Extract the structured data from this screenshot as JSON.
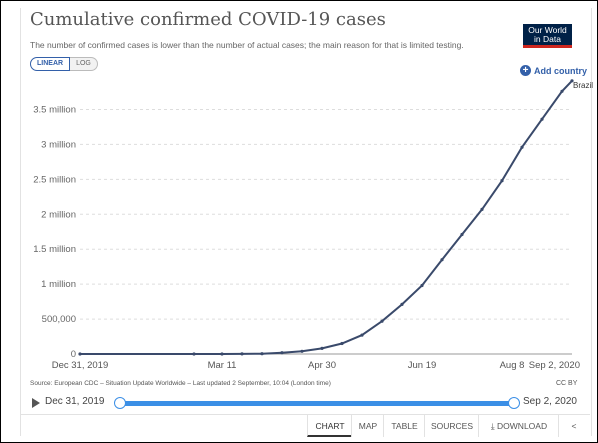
{
  "header": {
    "title": "Cumulative confirmed COVID-19 cases",
    "subtitle": "The number of confirmed cases is lower than the number of actual cases; the main reason for that is limited testing.",
    "logo_line1": "Our World",
    "logo_line2": "in Data"
  },
  "controls": {
    "linear_label": "LINEAR",
    "log_label": "LOG",
    "add_country_label": "Add country"
  },
  "footer": {
    "source": "Source: European CDC – Situation Update Worldwide – Last updated 2 September, 10:04 (London time)",
    "license": "CC BY"
  },
  "timeline": {
    "start_label": "Dec 31, 2019",
    "end_label": "Sep 2, 2020"
  },
  "tabs": [
    "CHART",
    "MAP",
    "TABLE",
    "SOURCES",
    "DOWNLOAD"
  ],
  "colors": {
    "series": "#3a4a6b",
    "accent": "#3360a9",
    "slider": "#3b8fe6"
  },
  "chart_data": {
    "type": "line",
    "title": "Cumulative confirmed COVID-19 cases",
    "ylim": [
      0,
      3950000
    ],
    "xlim": [
      "2019-12-31",
      "2020-09-02"
    ],
    "y_ticks": [
      {
        "value": 0,
        "label": "0"
      },
      {
        "value": 500000,
        "label": "500,000"
      },
      {
        "value": 1000000,
        "label": "1 million"
      },
      {
        "value": 1500000,
        "label": "1.5 million"
      },
      {
        "value": 2000000,
        "label": "2 million"
      },
      {
        "value": 2500000,
        "label": "2.5 million"
      },
      {
        "value": 3000000,
        "label": "3 million"
      },
      {
        "value": 3500000,
        "label": "3.5 million"
      }
    ],
    "x_ticks": [
      {
        "date": "2019-12-31",
        "label": "Dec 31, 2019"
      },
      {
        "date": "2020-03-11",
        "label": "Mar 11"
      },
      {
        "date": "2020-04-30",
        "label": "Apr 30"
      },
      {
        "date": "2020-06-19",
        "label": "Jun 19"
      },
      {
        "date": "2020-08-08",
        "label": "Aug 8"
      },
      {
        "date": "2020-09-02",
        "label": "Sep 2, 2020"
      }
    ],
    "grid": true,
    "series": [
      {
        "name": "Brazil",
        "points": [
          [
            "2019-12-31",
            0
          ],
          [
            "2020-02-26",
            0
          ],
          [
            "2020-03-11",
            50
          ],
          [
            "2020-03-21",
            900
          ],
          [
            "2020-03-31",
            4600
          ],
          [
            "2020-04-10",
            18000
          ],
          [
            "2020-04-20",
            38000
          ],
          [
            "2020-04-30",
            80000
          ],
          [
            "2020-05-10",
            150000
          ],
          [
            "2020-05-20",
            270000
          ],
          [
            "2020-05-30",
            470000
          ],
          [
            "2020-06-09",
            710000
          ],
          [
            "2020-06-19",
            980000
          ],
          [
            "2020-06-29",
            1350000
          ],
          [
            "2020-07-09",
            1710000
          ],
          [
            "2020-07-19",
            2070000
          ],
          [
            "2020-07-29",
            2480000
          ],
          [
            "2020-08-08",
            2960000
          ],
          [
            "2020-08-18",
            3360000
          ],
          [
            "2020-08-28",
            3760000
          ],
          [
            "2020-09-02",
            3910000
          ]
        ]
      }
    ]
  }
}
